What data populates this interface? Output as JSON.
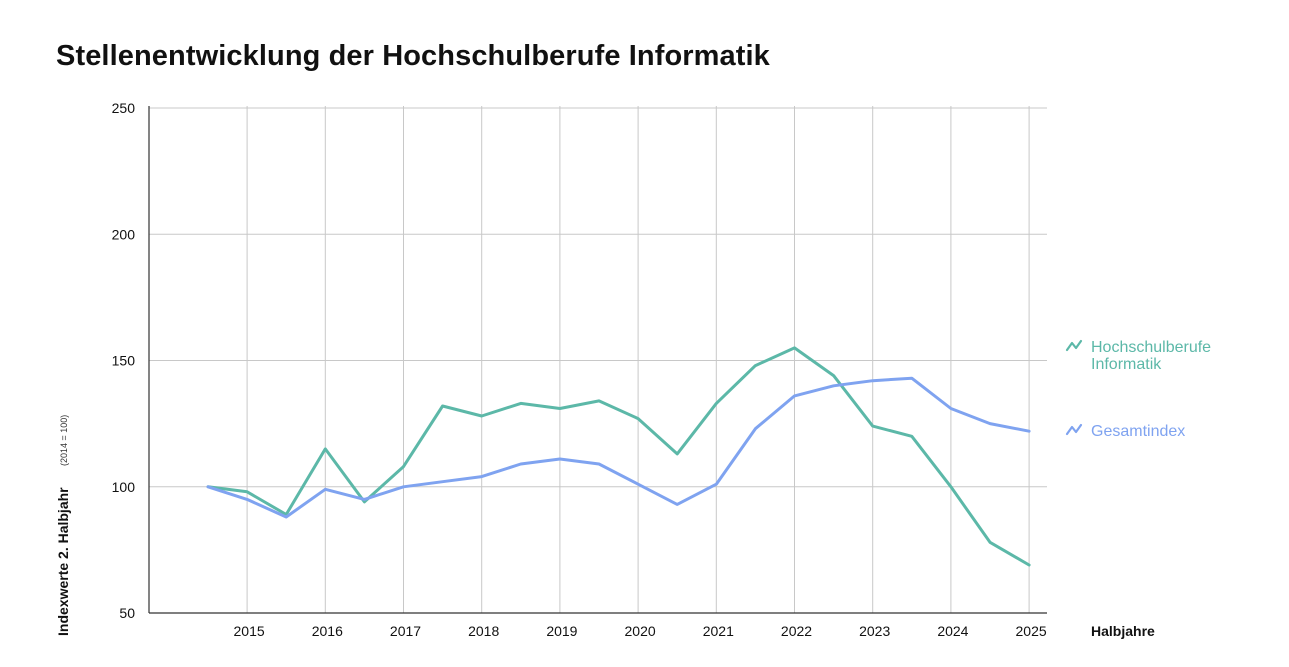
{
  "chart_data": {
    "type": "line",
    "title": "Stellenentwicklung der Hochschulberufe Informatik",
    "xlabel": "Halbjahre",
    "ylabel": "Indexwerte 2. Halbjahr",
    "ylabel_note": "(2014 = 100)",
    "ylim": [
      50,
      250
    ],
    "yticks": [
      50,
      100,
      150,
      200,
      250
    ],
    "xticks": [
      "2015",
      "2016",
      "2017",
      "2018",
      "2019",
      "2020",
      "2021",
      "2022",
      "2023",
      "2024",
      "2025"
    ],
    "grid": true,
    "legend_position": "right",
    "x": [
      "2014-2",
      "2015-1",
      "2015-2",
      "2016-1",
      "2016-2",
      "2017-1",
      "2017-2",
      "2018-1",
      "2018-2",
      "2019-1",
      "2019-2",
      "2020-1",
      "2020-2",
      "2021-1",
      "2021-2",
      "2022-1",
      "2022-2",
      "2023-1",
      "2023-2",
      "2024-1",
      "2024-2",
      "2025-1"
    ],
    "series": [
      {
        "name": "Hochschulberufe Informatik",
        "color": "#5cb8a8",
        "values": [
          100,
          98,
          89,
          115,
          94,
          108,
          132,
          128,
          133,
          131,
          134,
          127,
          113,
          133,
          148,
          155,
          144,
          124,
          120,
          100,
          78,
          69
        ]
      },
      {
        "name": "Gesamtindex",
        "color": "#7fa3f0",
        "values": [
          100,
          95,
          88,
          99,
          95,
          100,
          102,
          104,
          109,
          111,
          109,
          101,
          93,
          101,
          123,
          136,
          140,
          142,
          143,
          131,
          125,
          122
        ]
      }
    ]
  }
}
